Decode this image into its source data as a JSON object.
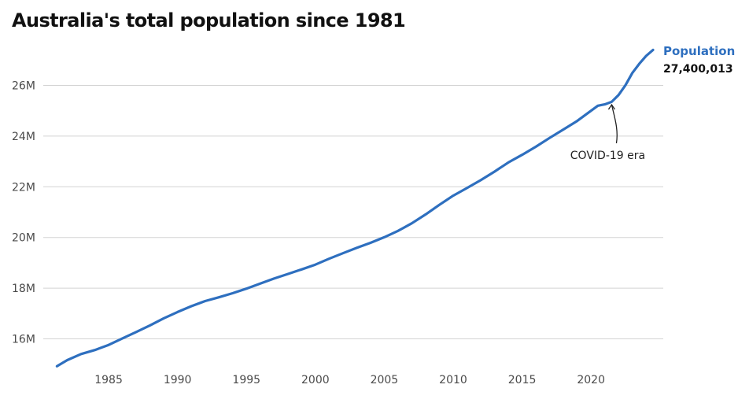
{
  "title": "Australia's total population since 1981",
  "colors": {
    "line": "#2e6fbf",
    "grid": "#d3d3d3",
    "text": "#111111"
  },
  "chart_data": {
    "type": "line",
    "title": "Australia's total population since 1981",
    "xlabel": "",
    "ylabel": "",
    "xlim": [
      1981,
      2024.5
    ],
    "ylim": [
      14.8,
      27.5
    ],
    "y_ticks": [
      16,
      18,
      20,
      22,
      24,
      26
    ],
    "y_tick_labels": [
      "16M",
      "18M",
      "20M",
      "22M",
      "24M",
      "26M"
    ],
    "x_ticks": [
      1985,
      1990,
      1995,
      2000,
      2005,
      2010,
      2015,
      2020
    ],
    "x_tick_labels": [
      "1985",
      "1990",
      "1995",
      "2000",
      "2005",
      "2010",
      "2015",
      "2020"
    ],
    "grid": "horizontal",
    "legend": "end-of-line label, top-right",
    "series": [
      {
        "name": "Population",
        "value_label": "27,400,013",
        "color": "#2e6fbf",
        "x": [
          1981.25,
          1982,
          1983,
          1984,
          1985,
          1986,
          1987,
          1988,
          1989,
          1990,
          1991,
          1992,
          1993,
          1994,
          1995,
          1996,
          1997,
          1998,
          1999,
          2000,
          2001,
          2002,
          2003,
          2004,
          2005,
          2006,
          2007,
          2008,
          2009,
          2010,
          2011,
          2012,
          2013,
          2014,
          2015,
          2016,
          2017,
          2018,
          2019,
          2020,
          2020.5,
          2021,
          2021.5,
          2022,
          2022.5,
          2023,
          2023.5,
          2024,
          2024.5
        ],
        "values": [
          14.92,
          15.16,
          15.4,
          15.56,
          15.76,
          16.02,
          16.27,
          16.53,
          16.81,
          17.06,
          17.29,
          17.49,
          17.64,
          17.8,
          17.98,
          18.18,
          18.38,
          18.56,
          18.74,
          18.93,
          19.16,
          19.38,
          19.59,
          19.79,
          20.01,
          20.26,
          20.56,
          20.91,
          21.29,
          21.65,
          21.95,
          22.26,
          22.6,
          22.96,
          23.26,
          23.58,
          23.93,
          24.26,
          24.6,
          25.0,
          25.2,
          25.25,
          25.35,
          25.62,
          26.01,
          26.49,
          26.85,
          27.16,
          27.4
        ]
      }
    ],
    "annotations": [
      {
        "text": "COVID-19 era",
        "target_x": 2021.5
      }
    ]
  }
}
